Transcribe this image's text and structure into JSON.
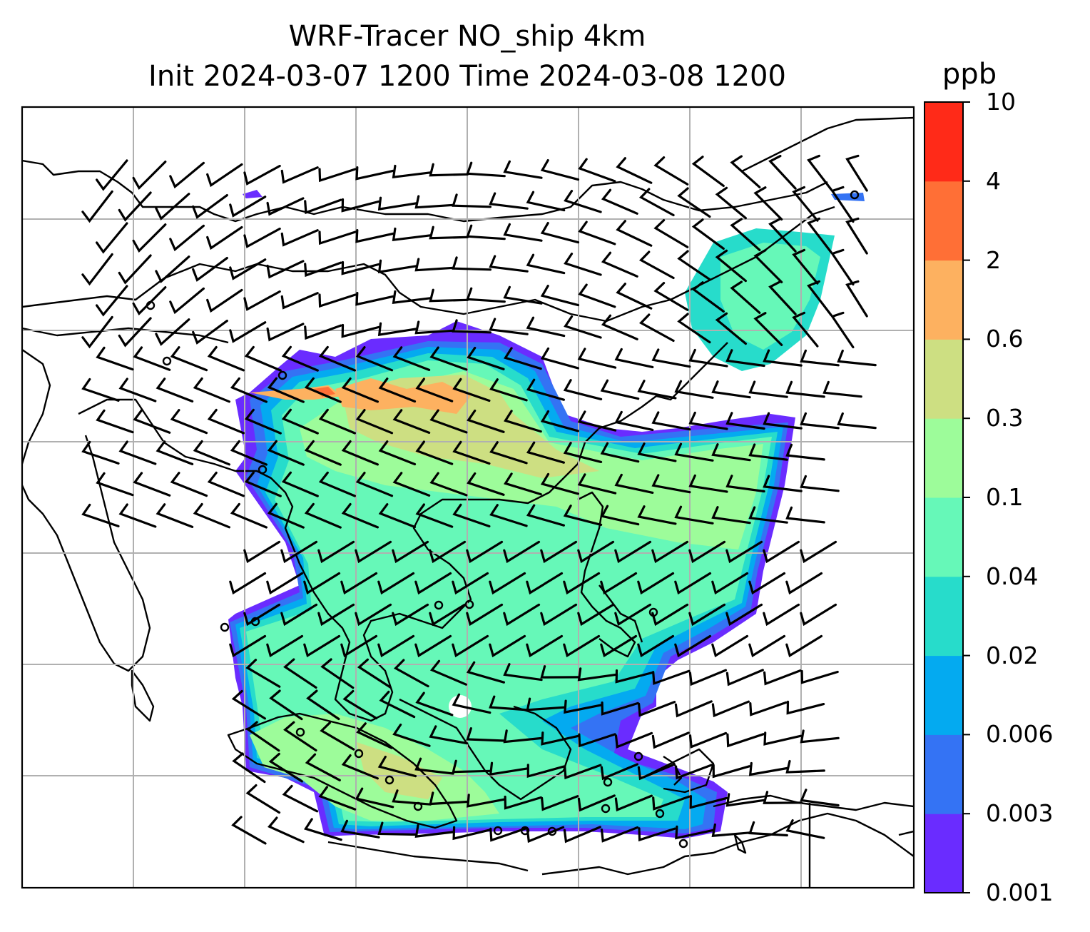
{
  "title": {
    "line1": "WRF-Tracer NO_ship 4km",
    "line2": "Init 2024-03-07 1200 Time 2024-03-08 1200"
  },
  "colorbar": {
    "unit": "ppb",
    "ticks": [
      "0.001",
      "0.003",
      "0.006",
      "0.02",
      "0.04",
      "0.1",
      "0.3",
      "0.6",
      "2",
      "4",
      "10"
    ],
    "colors": [
      "#6a2cff",
      "#3473f4",
      "#04aaf0",
      "#27dccb",
      "#66f8b8",
      "#9dfc9a",
      "#cddf82",
      "#fdb160",
      "#ff6f36",
      "#ff2a18"
    ]
  },
  "map": {
    "gridlines": "on",
    "coastlines": "on",
    "wind_barbs": "on",
    "station_markers": "on"
  }
}
